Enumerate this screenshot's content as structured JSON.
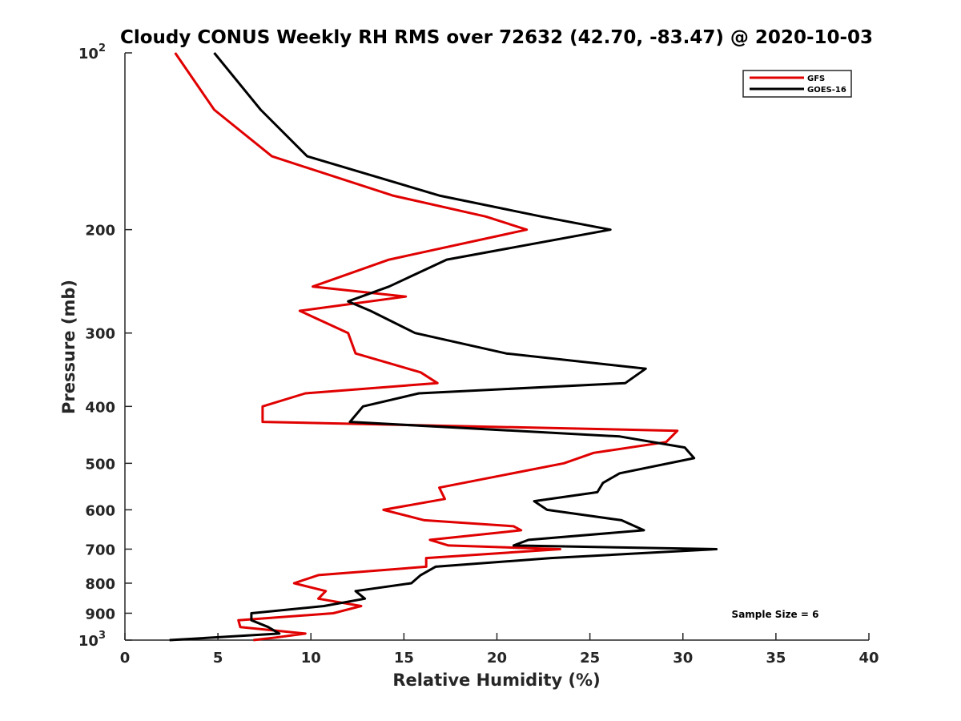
{
  "chart_data": {
    "type": "line",
    "title": "Cloudy CONUS Weekly RH RMS over 72632 (42.70, -83.47) @ 2020-10-03",
    "xlabel": "Relative Humidity (%)",
    "ylabel": "Pressure (mb)",
    "xlim": [
      0,
      40
    ],
    "ylim": [
      100,
      1000
    ],
    "y_scale": "log",
    "y_reversed": true,
    "grid": false,
    "legend_position": "top-right",
    "x_ticks": [
      "0",
      "5",
      "10",
      "15",
      "20",
      "25",
      "30",
      "35",
      "40"
    ],
    "y_ticks": [
      {
        "value": 100,
        "base": "10",
        "exp": "2"
      },
      {
        "value": 200,
        "label": "200"
      },
      {
        "value": 300,
        "label": "300"
      },
      {
        "value": 400,
        "label": "400"
      },
      {
        "value": 500,
        "label": "500"
      },
      {
        "value": 600,
        "label": "600"
      },
      {
        "value": 700,
        "label": "700"
      },
      {
        "value": 800,
        "label": "800"
      },
      {
        "value": 900,
        "label": "900"
      },
      {
        "value": 1000,
        "base": "10",
        "exp": "3"
      }
    ],
    "annotation": "Sample Size = 6",
    "series": [
      {
        "name": "GFS",
        "color": "#e00000",
        "points": [
          [
            2.7,
            100
          ],
          [
            4.8,
            125
          ],
          [
            7.9,
            150
          ],
          [
            14.4,
            175
          ],
          [
            19.4,
            190
          ],
          [
            21.6,
            200
          ],
          [
            14.2,
            225
          ],
          [
            10.1,
            250
          ],
          [
            15.1,
            260
          ],
          [
            9.4,
            275
          ],
          [
            12.0,
            300
          ],
          [
            12.4,
            325
          ],
          [
            15.9,
            350
          ],
          [
            16.8,
            365
          ],
          [
            9.7,
            380
          ],
          [
            7.4,
            400
          ],
          [
            7.4,
            425
          ],
          [
            29.7,
            440
          ],
          [
            29.1,
            460
          ],
          [
            25.2,
            480
          ],
          [
            23.6,
            500
          ],
          [
            16.9,
            550
          ],
          [
            17.2,
            575
          ],
          [
            13.9,
            600
          ],
          [
            16.1,
            625
          ],
          [
            20.9,
            640
          ],
          [
            21.3,
            650
          ],
          [
            16.4,
            675
          ],
          [
            17.4,
            690
          ],
          [
            23.4,
            700
          ],
          [
            16.2,
            725
          ],
          [
            16.2,
            750
          ],
          [
            10.4,
            775
          ],
          [
            9.1,
            800
          ],
          [
            10.8,
            825
          ],
          [
            10.4,
            850
          ],
          [
            12.7,
            875
          ],
          [
            11.2,
            900
          ],
          [
            6.1,
            925
          ],
          [
            6.2,
            950
          ],
          [
            9.7,
            975
          ],
          [
            8.1,
            990
          ],
          [
            6.9,
            1000
          ]
        ]
      },
      {
        "name": "GOES-16",
        "color": "#000000",
        "points": [
          [
            4.8,
            100
          ],
          [
            7.3,
            125
          ],
          [
            9.8,
            150
          ],
          [
            16.9,
            175
          ],
          [
            22.4,
            190
          ],
          [
            26.1,
            200
          ],
          [
            17.3,
            225
          ],
          [
            14.2,
            250
          ],
          [
            12.0,
            265
          ],
          [
            13.2,
            275
          ],
          [
            15.6,
            300
          ],
          [
            20.5,
            325
          ],
          [
            28.0,
            345
          ],
          [
            26.9,
            365
          ],
          [
            15.8,
            380
          ],
          [
            12.8,
            400
          ],
          [
            12.1,
            425
          ],
          [
            26.6,
            450
          ],
          [
            30.1,
            470
          ],
          [
            30.6,
            490
          ],
          [
            26.6,
            520
          ],
          [
            25.7,
            540
          ],
          [
            25.4,
            560
          ],
          [
            22.0,
            580
          ],
          [
            22.7,
            600
          ],
          [
            26.7,
            625
          ],
          [
            27.9,
            650
          ],
          [
            21.7,
            675
          ],
          [
            20.9,
            690
          ],
          [
            31.8,
            700
          ],
          [
            22.9,
            725
          ],
          [
            16.7,
            750
          ],
          [
            15.9,
            775
          ],
          [
            15.4,
            800
          ],
          [
            12.4,
            825
          ],
          [
            12.9,
            850
          ],
          [
            10.7,
            875
          ],
          [
            6.8,
            900
          ],
          [
            6.8,
            925
          ],
          [
            7.7,
            950
          ],
          [
            8.3,
            975
          ],
          [
            2.4,
            1000
          ]
        ]
      }
    ]
  }
}
